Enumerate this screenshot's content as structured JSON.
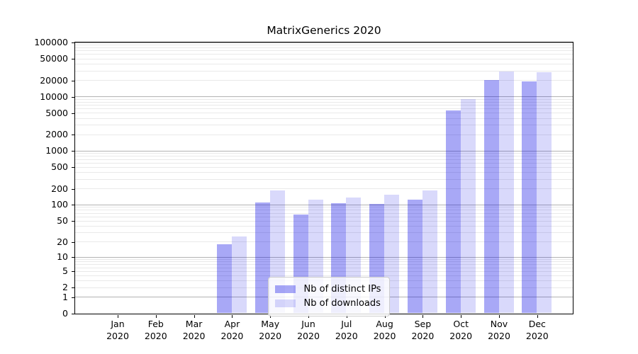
{
  "title": "MatrixGenerics 2020",
  "chart_data": {
    "type": "bar",
    "title": "MatrixGenerics 2020",
    "xlabel": "",
    "ylabel": "",
    "yscale": "symlog",
    "ylim": [
      0,
      100000
    ],
    "grid": true,
    "y_tick_labels": [
      "0",
      "1",
      "2",
      "5",
      "10",
      "20",
      "50",
      "100",
      "200",
      "500",
      "1000",
      "2000",
      "5000",
      "10000",
      "20000",
      "50000",
      "100000"
    ],
    "y_ticks": [
      0,
      1,
      2,
      5,
      10,
      20,
      50,
      100,
      200,
      500,
      1000,
      2000,
      5000,
      10000,
      20000,
      50000,
      100000
    ],
    "categories": [
      "Jan 2020",
      "Feb 2020",
      "Mar 2020",
      "Apr 2020",
      "May 2020",
      "Jun 2020",
      "Jul 2020",
      "Aug 2020",
      "Sep 2020",
      "Oct 2020",
      "Nov 2020",
      "Dec 2020"
    ],
    "series": [
      {
        "name": "Nb of distinct IPs",
        "base_color": "#0000e6",
        "alpha": 0.34,
        "values": [
          0,
          0,
          0,
          18,
          110,
          66,
          106,
          102,
          124,
          5500,
          20000,
          19000
        ]
      },
      {
        "name": "Nb of downloads",
        "base_color": "#0000e6",
        "alpha": 0.15,
        "values": [
          0,
          0,
          0,
          25,
          185,
          122,
          136,
          155,
          185,
          8800,
          29000,
          28000
        ]
      }
    ],
    "legend_position": "lower center"
  },
  "colors": {
    "decade_gridline": "#b3b3b3",
    "minor_gridline": "#e9e9e9",
    "axis_spine": "#000000",
    "background": "#ffffff"
  }
}
